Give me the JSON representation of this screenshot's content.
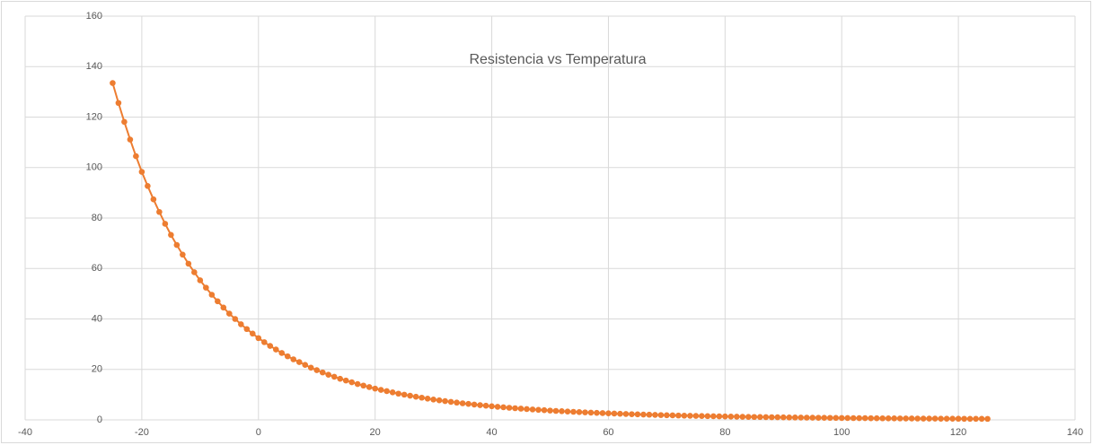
{
  "chart_data": {
    "type": "scatter",
    "title": "Resistencia vs Temperatura",
    "x": [
      -25,
      -24,
      -23,
      -22,
      -21,
      -20,
      -19,
      -18,
      -17,
      -16,
      -15,
      -14,
      -13,
      -12,
      -11,
      -10,
      -9,
      -8,
      -7,
      -6,
      -5,
      -4,
      -3,
      -2,
      -1,
      0,
      1,
      2,
      3,
      4,
      5,
      6,
      7,
      8,
      9,
      10,
      11,
      12,
      13,
      14,
      15,
      16,
      17,
      18,
      19,
      20,
      21,
      22,
      23,
      24,
      25,
      26,
      27,
      28,
      29,
      30,
      31,
      32,
      33,
      34,
      35,
      36,
      37,
      38,
      39,
      40,
      41,
      42,
      43,
      44,
      45,
      46,
      47,
      48,
      49,
      50,
      51,
      52,
      53,
      54,
      55,
      56,
      57,
      58,
      59,
      60,
      61,
      62,
      63,
      64,
      65,
      66,
      67,
      68,
      69,
      70,
      71,
      72,
      73,
      74,
      75,
      76,
      77,
      78,
      79,
      80,
      81,
      82,
      83,
      84,
      85,
      86,
      87,
      88,
      89,
      90,
      91,
      92,
      93,
      94,
      95,
      96,
      97,
      98,
      99,
      100,
      101,
      102,
      103,
      104,
      105,
      106,
      107,
      108,
      109,
      110,
      111,
      112,
      113,
      114,
      115,
      116,
      117,
      118,
      119,
      120,
      121,
      122,
      123,
      124,
      125
    ],
    "values": [
      133.5,
      125.6,
      118.1,
      111.1,
      104.5,
      98.3,
      92.7,
      87.4,
      82.4,
      77.7,
      73.3,
      69.3,
      65.5,
      61.9,
      58.5,
      55.3,
      52.4,
      49.6,
      47.0,
      44.5,
      42.1,
      40.0,
      37.9,
      36.0,
      34.2,
      32.4,
      30.8,
      29.3,
      27.9,
      26.5,
      25.2,
      24.0,
      22.9,
      21.8,
      20.7,
      19.7,
      18.8,
      17.9,
      17.1,
      16.3,
      15.6,
      14.9,
      14.2,
      13.6,
      13.0,
      12.4,
      11.9,
      11.4,
      10.9,
      10.4,
      10.0,
      9.58,
      9.18,
      8.8,
      8.43,
      8.08,
      7.75,
      7.44,
      7.14,
      6.85,
      6.58,
      6.32,
      6.07,
      5.84,
      5.61,
      5.39,
      5.19,
      4.99,
      4.8,
      4.62,
      4.45,
      4.28,
      4.13,
      3.98,
      3.83,
      3.69,
      3.56,
      3.44,
      3.32,
      3.2,
      3.09,
      2.98,
      2.88,
      2.78,
      2.68,
      2.59,
      2.5,
      2.42,
      2.34,
      2.26,
      2.19,
      2.12,
      2.05,
      1.98,
      1.91,
      1.85,
      1.79,
      1.73,
      1.68,
      1.63,
      1.58,
      1.53,
      1.48,
      1.43,
      1.39,
      1.35,
      1.31,
      1.27,
      1.23,
      1.19,
      1.16,
      1.12,
      1.09,
      1.06,
      1.03,
      1.0,
      0.97,
      0.94,
      0.92,
      0.89,
      0.87,
      0.84,
      0.82,
      0.8,
      0.78,
      0.75,
      0.73,
      0.71,
      0.69,
      0.68,
      0.66,
      0.64,
      0.62,
      0.61,
      0.59,
      0.58,
      0.56,
      0.55,
      0.53,
      0.52,
      0.51,
      0.5,
      0.48,
      0.47,
      0.46,
      0.45,
      0.44,
      0.43,
      0.42,
      0.41,
      0.4
    ],
    "color": "#ed7d31",
    "xlim": [
      -40,
      140
    ],
    "xticks": [
      -40,
      -20,
      0,
      20,
      40,
      60,
      80,
      100,
      120,
      140
    ],
    "ylim": [
      0,
      160
    ],
    "yticks": [
      0,
      20,
      40,
      60,
      80,
      100,
      120,
      140,
      160
    ],
    "grid": true
  }
}
